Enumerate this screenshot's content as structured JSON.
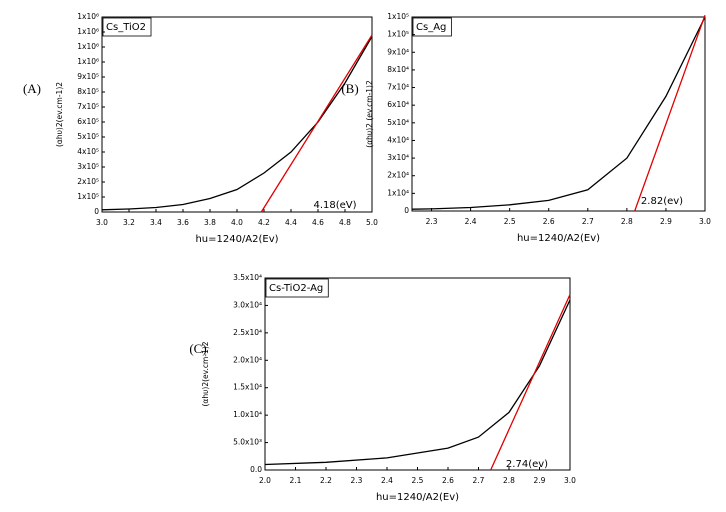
{
  "chart_data": [
    {
      "type": "line",
      "panel_label": "(A)",
      "title": "Cs_TiO2",
      "ylabel": "(αhυ)2(ev.cm-1)2",
      "xlabel": "hu=1240/A2(Ev)",
      "annotation": "4.18(eV)",
      "xlim": [
        3.0,
        5.0
      ],
      "ylim": [
        0,
        1300000
      ],
      "xticks": [
        {
          "value": 3.0,
          "label": "3.0"
        },
        3.2,
        3.4,
        3.6,
        3.8,
        {
          "value": 4.0,
          "label": "4.0"
        },
        4.2,
        4.4,
        4.6,
        4.8,
        {
          "value": 5.0,
          "label": "5.0"
        }
      ],
      "yticks": [
        0,
        {
          "value": 100000,
          "label": "1x10⁵"
        },
        {
          "value": 200000,
          "label": "2x10⁵"
        },
        {
          "value": 300000,
          "label": "3x10⁵"
        },
        {
          "value": 400000,
          "label": "4x10⁵"
        },
        {
          "value": 500000,
          "label": "5x10⁵"
        },
        {
          "value": 600000,
          "label": "6x10⁵"
        },
        {
          "value": 700000,
          "label": "7x10⁵"
        },
        {
          "value": 800000,
          "label": "8x10⁵"
        },
        {
          "value": 900000,
          "label": "9x10⁵"
        },
        {
          "value": 1000000,
          "label": "1x10⁶"
        },
        {
          "value": 1100000,
          "label": "1x10⁶"
        },
        {
          "value": 1200000,
          "label": "1x10⁶"
        },
        {
          "value": 1300000,
          "label": "1x10⁶"
        }
      ],
      "series": [
        {
          "color": "#000000",
          "x": [
            3.0,
            3.2,
            3.4,
            3.6,
            3.8,
            4.0,
            4.2,
            4.4,
            4.6,
            4.8,
            5.0
          ],
          "values": [
            15000,
            20000,
            30000,
            50000,
            90000,
            150000,
            260000,
            400000,
            600000,
            860000,
            1170000
          ]
        },
        {
          "color": "#e00000",
          "x": [
            4.18,
            5.0
          ],
          "values": [
            0,
            1180000
          ]
        }
      ]
    },
    {
      "type": "line",
      "panel_label": "(B)",
      "title": "Cs_Ag",
      "ylabel": "(αhυ)2 (ev.cm-1)2",
      "xlabel": "hu=1240/A2(Ev)",
      "annotation": "2.82(ev)",
      "xlim": [
        2.25,
        3.0
      ],
      "ylim": [
        0,
        110000
      ],
      "xticks": [
        2.3,
        2.4,
        2.5,
        2.6,
        2.7,
        2.8,
        2.9,
        {
          "value": 3.0,
          "label": "3.0"
        }
      ],
      "yticks": [
        0,
        {
          "value": 10000,
          "label": "1x10⁴"
        },
        {
          "value": 20000,
          "label": "2x10⁴"
        },
        {
          "value": 30000,
          "label": "3x10⁴"
        },
        {
          "value": 40000,
          "label": "4x10⁴"
        },
        {
          "value": 50000,
          "label": "5x10⁴"
        },
        {
          "value": 60000,
          "label": "6x10⁴"
        },
        {
          "value": 70000,
          "label": "7x10⁴"
        },
        {
          "value": 80000,
          "label": "8x10⁴"
        },
        {
          "value": 90000,
          "label": "9x10⁴"
        },
        {
          "value": 100000,
          "label": "1x10⁵"
        },
        {
          "value": 110000,
          "label": "1x10⁵"
        }
      ],
      "series": [
        {
          "color": "#000000",
          "x": [
            2.25,
            2.3,
            2.4,
            2.5,
            2.6,
            2.7,
            2.8,
            2.9,
            3.0
          ],
          "values": [
            1000,
            1200,
            2000,
            3500,
            6000,
            12000,
            30000,
            65000,
            110000
          ]
        },
        {
          "color": "#e00000",
          "x": [
            2.82,
            3.0
          ],
          "values": [
            0,
            111000
          ]
        }
      ]
    },
    {
      "type": "line",
      "panel_label": "(C)",
      "title": "Cs-TiO2-Ag",
      "ylabel": "(αhυ)2(ev.cm-1)2",
      "xlabel": "hu=1240/A2(Ev)",
      "annotation": "2.74(ev)",
      "xlim": [
        2.0,
        3.0
      ],
      "ylim": [
        0,
        35000
      ],
      "xticks": [
        {
          "value": 2.0,
          "label": "2.0"
        },
        2.1,
        2.2,
        2.3,
        2.4,
        2.5,
        2.6,
        2.7,
        2.8,
        2.9,
        {
          "value": 3.0,
          "label": "3.0"
        }
      ],
      "yticks": [
        {
          "value": 0,
          "label": "0.0"
        },
        {
          "value": 5000,
          "label": "5.0x10³"
        },
        {
          "value": 10000,
          "label": "1.0x10⁴"
        },
        {
          "value": 15000,
          "label": "1.5x10⁴"
        },
        {
          "value": 20000,
          "label": "2.0x10⁴"
        },
        {
          "value": 25000,
          "label": "2.5x10⁴"
        },
        {
          "value": 30000,
          "label": "3.0x10⁴"
        },
        {
          "value": 35000,
          "label": "3.5x10⁴"
        }
      ],
      "series": [
        {
          "color": "#000000",
          "x": [
            2.0,
            2.2,
            2.4,
            2.6,
            2.7,
            2.8,
            2.9,
            3.0
          ],
          "values": [
            1000,
            1400,
            2200,
            4000,
            6000,
            10500,
            19000,
            31000
          ]
        },
        {
          "color": "#e00000",
          "x": [
            2.74,
            3.0
          ],
          "values": [
            0,
            32000
          ]
        }
      ]
    }
  ]
}
